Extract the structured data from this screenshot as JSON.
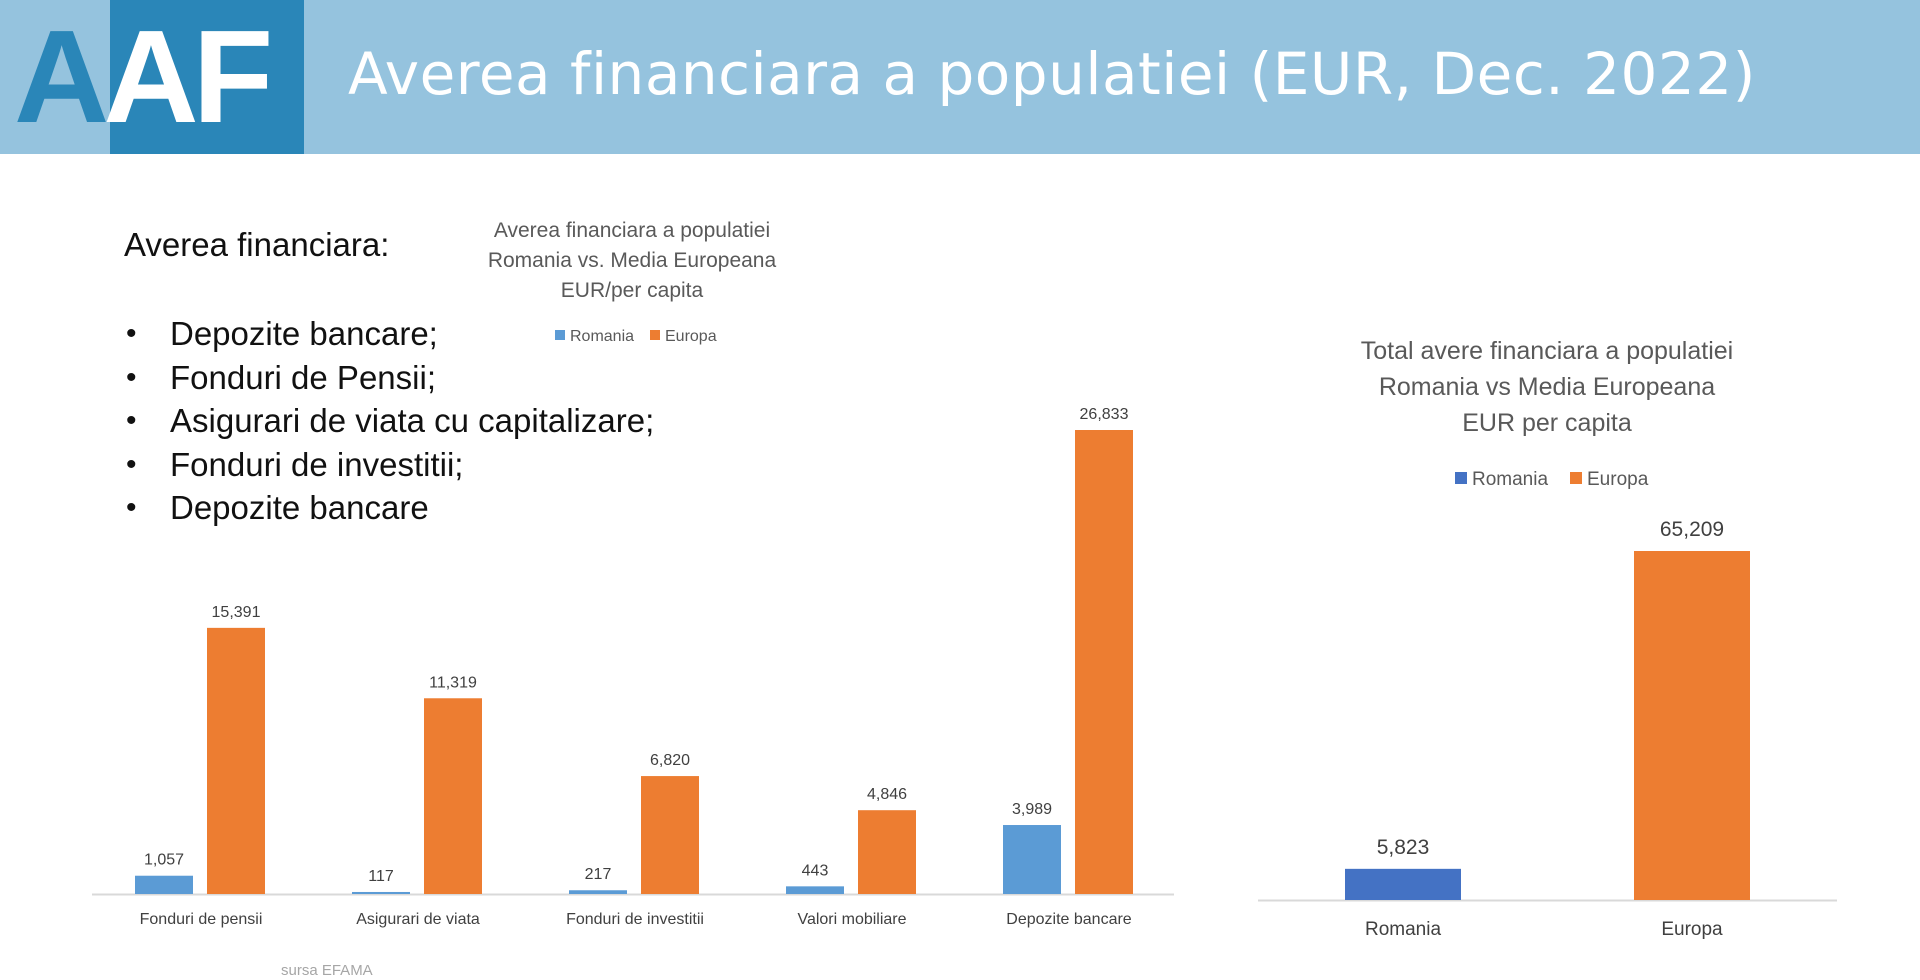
{
  "header": {
    "logo_letters": [
      "A",
      "AF"
    ],
    "title": "Averea financiara a populatiei (EUR, Dec. 2022)",
    "band_color": "#95c3de",
    "logo_color": "#2a86b8"
  },
  "content": {
    "heading": "Averea financiara:",
    "bullets": [
      "Depozite bancare;",
      "Fonduri de Pensii;",
      "Asigurari de viata cu capitalizare;",
      "Fonduri de investitii;",
      "Depozite bancare"
    ],
    "source": "sursa EFAMA"
  },
  "chart_data": [
    {
      "type": "bar",
      "title": [
        "Averea financiara a populatiei",
        "Romania vs. Media Europeana",
        "EUR/per capita"
      ],
      "categories": [
        "Fonduri de pensii",
        "Asigurari de viata",
        "Fonduri de investitii",
        "Valori mobiliare",
        "Depozite bancare"
      ],
      "series": [
        {
          "name": "Romania",
          "color": "#5b9bd5",
          "values": [
            1057,
            117,
            217,
            443,
            3989
          ],
          "labels": [
            "1,057",
            "117",
            "217",
            "443",
            "3,989"
          ]
        },
        {
          "name": "Europa",
          "color": "#ed7d31",
          "values": [
            15391,
            11319,
            6820,
            4846,
            26833
          ],
          "labels": [
            "15,391",
            "11,319",
            "6,820",
            "4,846",
            "26,833"
          ]
        }
      ],
      "ylim": [
        0,
        26833
      ],
      "legend": "top",
      "grid": false
    },
    {
      "type": "bar",
      "title": [
        "Total avere financiara a populatiei",
        "Romania vs Media Europeana",
        "EUR per capita"
      ],
      "categories": [
        "Romania",
        "Europa"
      ],
      "series": [
        {
          "name": "Romania",
          "color": "#4472c4"
        },
        {
          "name": "Europa",
          "color": "#ed7d31"
        }
      ],
      "values": [
        5823,
        65209
      ],
      "labels": [
        "5,823",
        "65,209"
      ],
      "colors": [
        "#4472c4",
        "#ed7d31"
      ],
      "ylim": [
        0,
        65209
      ],
      "legend": "top",
      "grid": false
    }
  ]
}
